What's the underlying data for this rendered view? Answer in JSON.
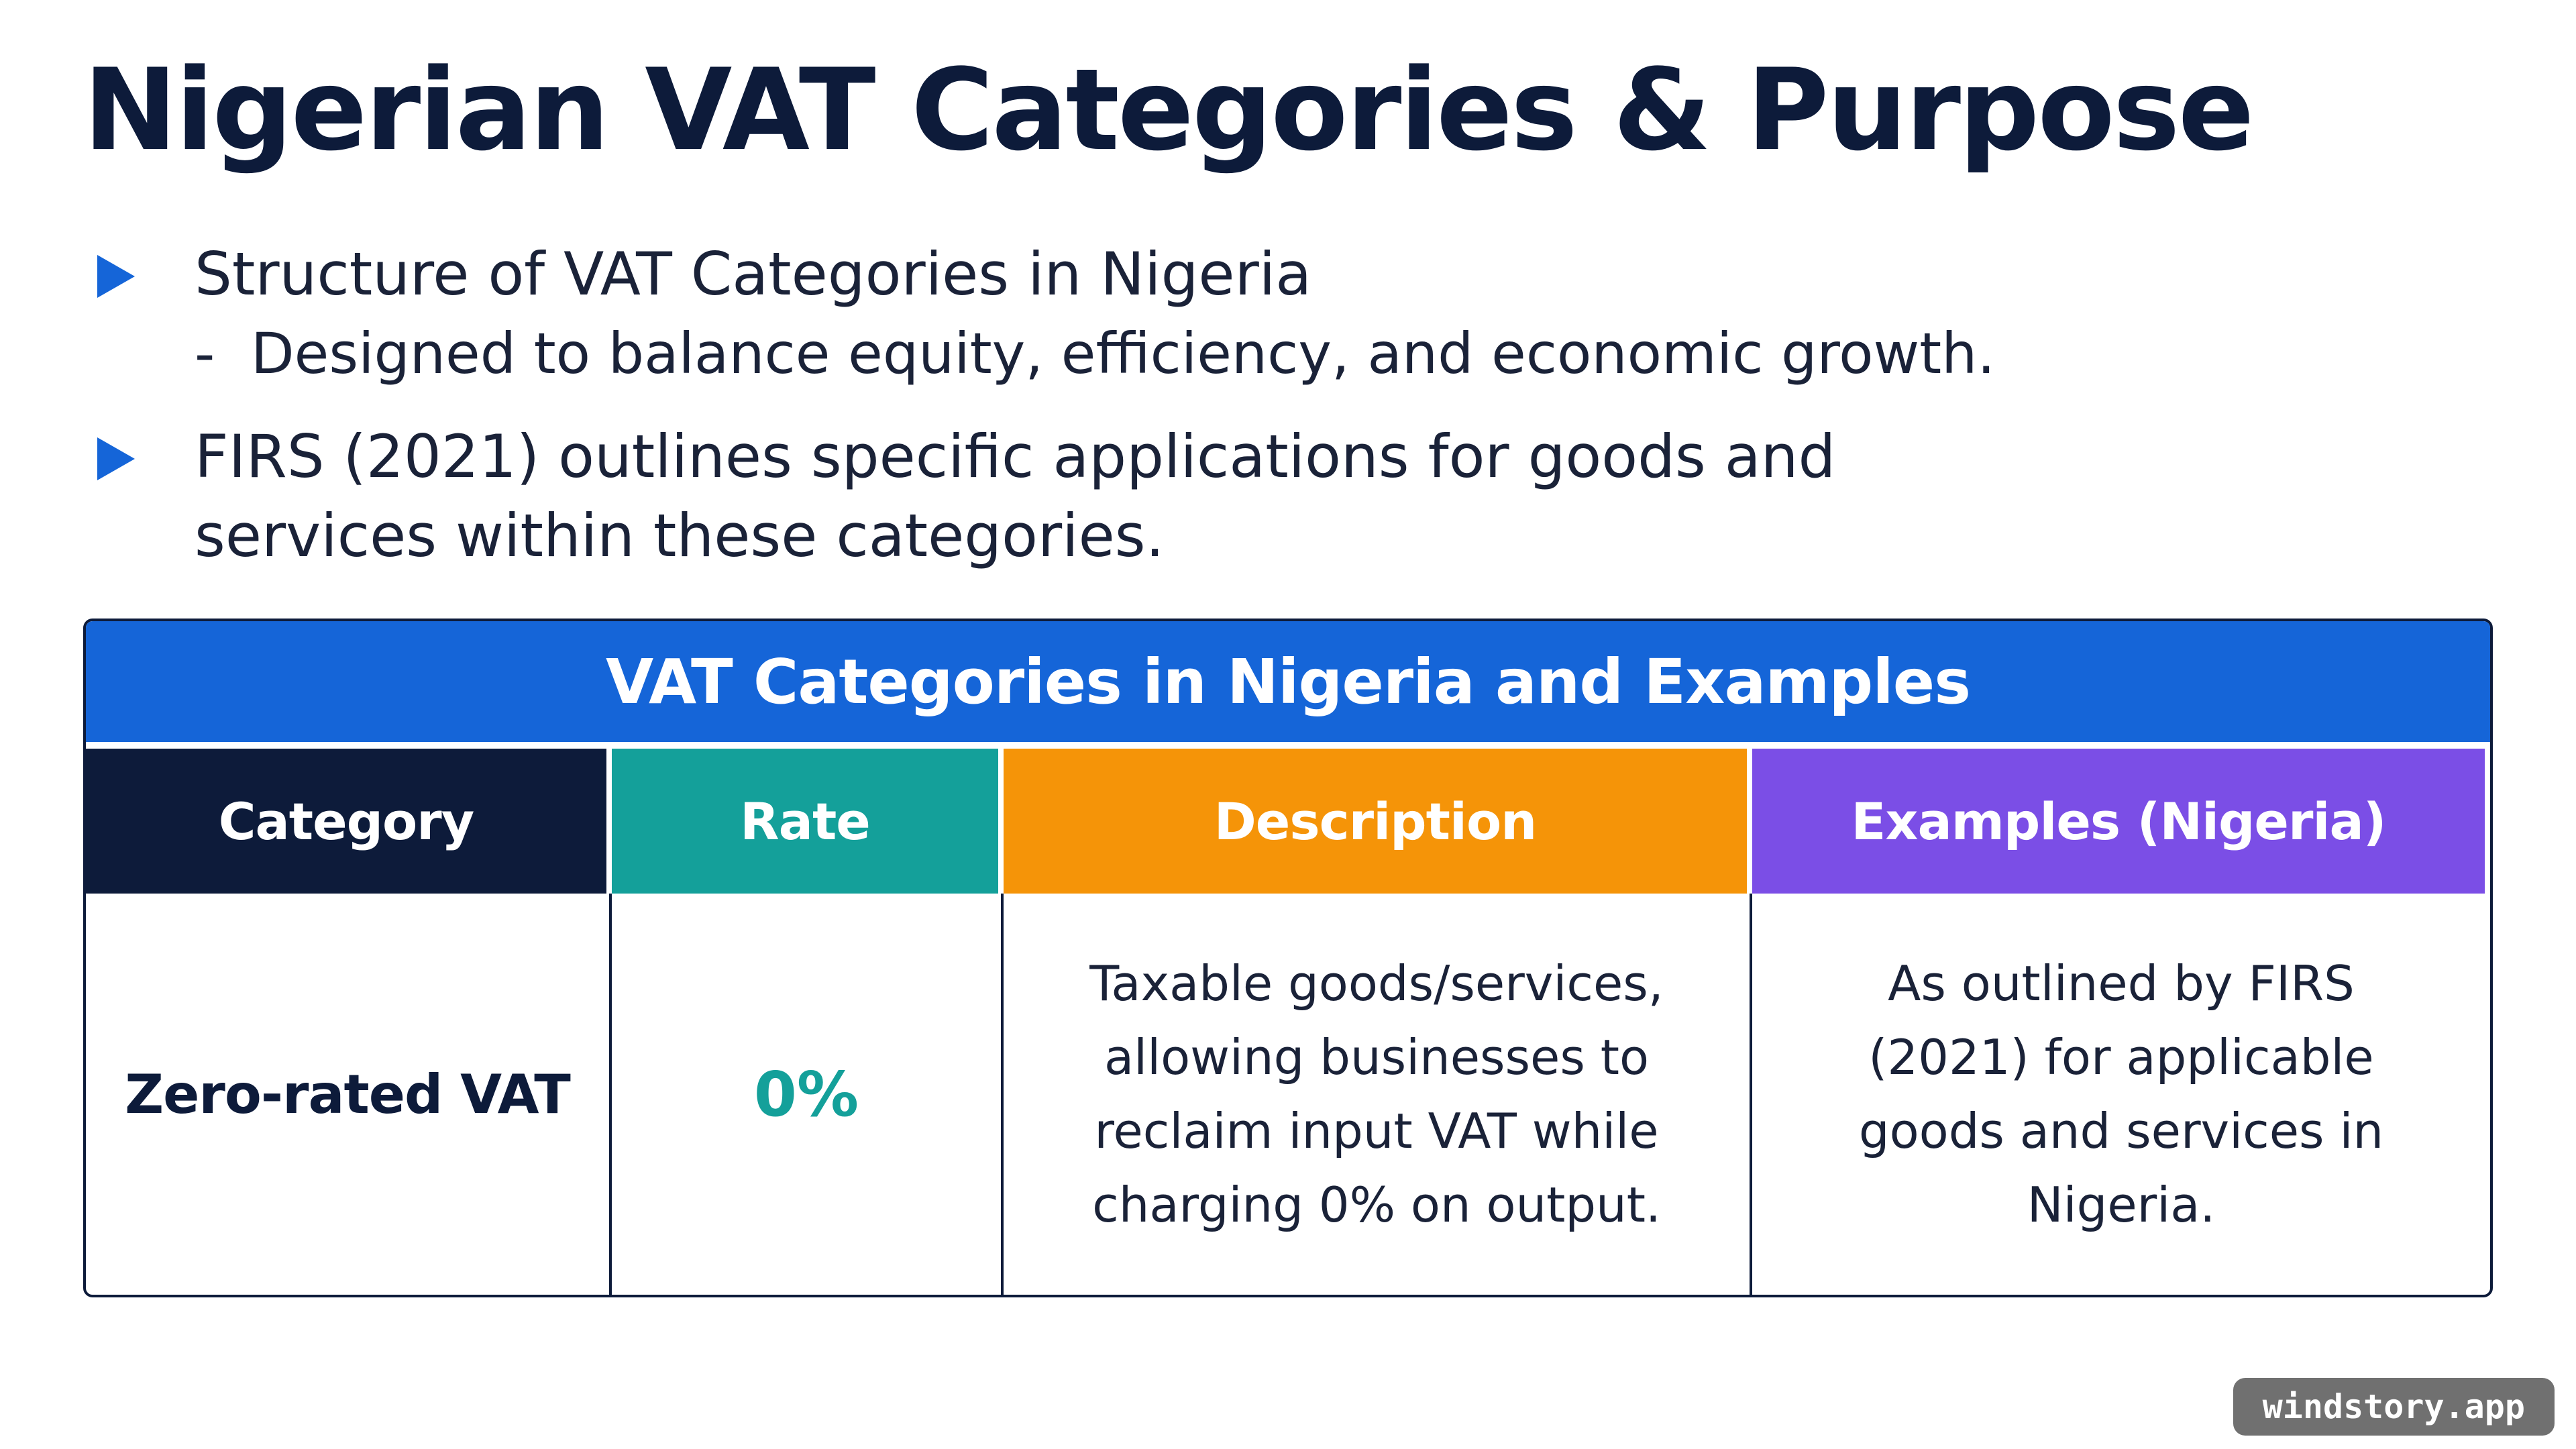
{
  "slide": {
    "title": "Nigerian VAT Categories & Purpose"
  },
  "bullets": [
    {
      "icon": "triangle-right-icon",
      "text": "Structure of VAT Categories in Nigeria",
      "sub": "Designed to balance equity, efficiency, and economic growth.",
      "sub_prefix": "-"
    },
    {
      "icon": "triangle-right-icon",
      "text": "FIRS (2021) outlines specific applications for goods and services within these categories."
    }
  ],
  "table": {
    "title": "VAT Categories in Nigeria and Examples",
    "headers": [
      "Category",
      "Rate",
      "Description",
      "Examples (Nigeria)"
    ],
    "rows": [
      {
        "category": "Zero-rated VAT",
        "rate": "0%",
        "description": "Taxable goods/services, allowing businesses to reclaim input VAT while charging 0% on output.",
        "examples": "As outlined by FIRS (2021) for applicable goods and services in Nigeria."
      }
    ]
  },
  "colors": {
    "title_bar": "#1565d8",
    "category_header": "#0d1b3a",
    "rate_header": "#14a09a",
    "description_header": "#f59408",
    "examples_header": "#7b4ee6",
    "bullet": "#1565d8"
  },
  "watermark": "windstory.app"
}
